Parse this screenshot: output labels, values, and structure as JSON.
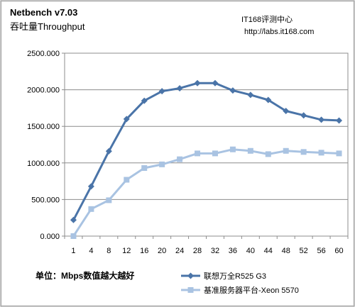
{
  "header": {
    "title": "Netbench v7.03",
    "subtitle": "吞吐量Throughput",
    "source_name": "IT168评测中心",
    "source_url": "http://labs.it168.com"
  },
  "footer": {
    "unit_note": "单位：Mbps数值越大越好"
  },
  "chart_data": {
    "type": "line",
    "title": "Netbench v7.03",
    "subtitle": "吞吐量Throughput",
    "xlabel": "",
    "ylabel": "",
    "categories": [
      "1",
      "4",
      "8",
      "12",
      "16",
      "20",
      "24",
      "28",
      "32",
      "36",
      "40",
      "44",
      "48",
      "52",
      "56",
      "60"
    ],
    "y_ticks": [
      "0.000",
      "500.000",
      "1000.000",
      "1500.000",
      "2000.000",
      "2500.000"
    ],
    "ylim": [
      0,
      2500
    ],
    "grid": "horizontal",
    "legend_position": "bottom-right",
    "series": [
      {
        "name": "联想万全R525 G3",
        "color": "#4a74a8",
        "marker": "diamond",
        "values": [
          220,
          680,
          1160,
          1600,
          1850,
          1980,
          2020,
          2090,
          2090,
          1990,
          1930,
          1860,
          1710,
          1650,
          1590,
          1580
        ]
      },
      {
        "name": "基准服务器平台-Xeon 5570",
        "color": "#a9c3e2",
        "marker": "square",
        "values": [
          0,
          370,
          490,
          770,
          930,
          980,
          1050,
          1130,
          1130,
          1185,
          1165,
          1120,
          1165,
          1150,
          1140,
          1130
        ]
      }
    ]
  }
}
